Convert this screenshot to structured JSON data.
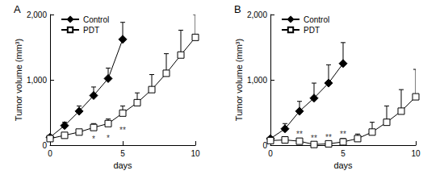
{
  "chart_data": [
    {
      "type": "line",
      "title": "A",
      "x_label": "days",
      "y_label": "Tumor volume (mm³)",
      "x": [
        0,
        1,
        2,
        3,
        4,
        5,
        6,
        7,
        8,
        9,
        10
      ],
      "xlim": [
        0,
        10
      ],
      "xticks": [
        0,
        5,
        10
      ],
      "ylim": [
        0,
        2000
      ],
      "yticks": [
        0,
        1000,
        2000
      ],
      "grid": false,
      "legend": "upper left",
      "series": [
        {
          "name": "Control",
          "color": "#000000",
          "marker": "diamond",
          "values": [
            120,
            300,
            520,
            760,
            1020,
            1620,
            null,
            null,
            null,
            null,
            null
          ],
          "errors": [
            30,
            50,
            80,
            130,
            160,
            260,
            null,
            null,
            null,
            null,
            null
          ]
        },
        {
          "name": "PDT",
          "color": "#000000",
          "marker": "square_open",
          "values": [
            100,
            150,
            200,
            270,
            330,
            490,
            650,
            850,
            1100,
            1380,
            1650
          ],
          "errors": [
            20,
            30,
            40,
            60,
            70,
            110,
            150,
            230,
            300,
            380,
            350
          ]
        }
      ],
      "annotations": [
        {
          "x": 3,
          "y": 90,
          "text": "*"
        },
        {
          "x": 4,
          "y": 110,
          "text": "*"
        },
        {
          "x": 5,
          "y": 230,
          "text": "**"
        }
      ]
    },
    {
      "type": "line",
      "title": "B",
      "x_label": "days",
      "y_label": "Tumor volume (mm³)",
      "x": [
        0,
        1,
        2,
        3,
        4,
        5,
        6,
        7,
        8,
        9,
        10
      ],
      "xlim": [
        0,
        10
      ],
      "xticks": [
        0,
        5,
        10
      ],
      "ylim": [
        0,
        2000
      ],
      "yticks": [
        0,
        1000,
        2000
      ],
      "grid": false,
      "legend": "upper left",
      "series": [
        {
          "name": "Control",
          "color": "#000000",
          "marker": "diamond",
          "values": [
            100,
            250,
            520,
            720,
            950,
            1250,
            null,
            null,
            null,
            null,
            null
          ],
          "errors": [
            30,
            80,
            150,
            230,
            280,
            320,
            null,
            null,
            null,
            null,
            null
          ]
        },
        {
          "name": "PDT",
          "color": "#000000",
          "marker": "square_open",
          "values": [
            70,
            80,
            60,
            10,
            20,
            50,
            100,
            200,
            350,
            520,
            740
          ],
          "errors": [
            20,
            50,
            40,
            20,
            30,
            50,
            70,
            150,
            250,
            330,
            420
          ]
        }
      ],
      "annotations": [
        {
          "x": 2,
          "y": 170,
          "text": "**"
        },
        {
          "x": 3,
          "y": 100,
          "text": "**"
        },
        {
          "x": 4,
          "y": 120,
          "text": "**"
        },
        {
          "x": 5,
          "y": 170,
          "text": "**"
        }
      ]
    }
  ]
}
